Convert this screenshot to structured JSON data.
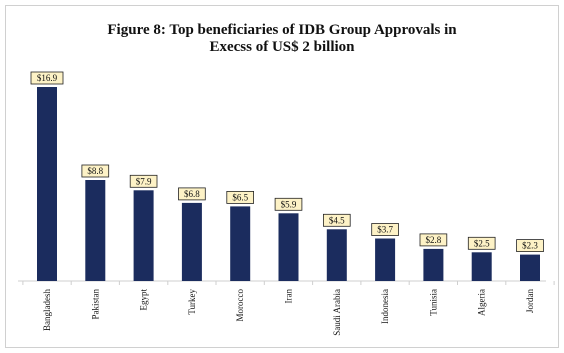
{
  "chart_data": {
    "type": "bar",
    "title_line1": "Figure 8: Top beneficiaries of IDB Group Approvals in",
    "title_line2": "Execss of US$ 2 billion",
    "categories": [
      "Bangladesh",
      "Pakistan",
      "Egypt",
      "Turkey",
      "Morocco",
      "Iran",
      "Saudi Arabia",
      "Indonesia",
      "Tunisia",
      "Algeria",
      "Jordan"
    ],
    "values": [
      16.9,
      8.8,
      7.9,
      6.8,
      6.5,
      5.9,
      4.5,
      3.7,
      2.8,
      2.5,
      2.3
    ],
    "data_labels": [
      "$16.9",
      "$8.8",
      "$7.9",
      "$6.8",
      "$6.5",
      "$5.9",
      "$4.5",
      "$3.7",
      "$2.8",
      "$2.5",
      "$2.3"
    ],
    "ylim": [
      0,
      16.9
    ],
    "grid": false,
    "legend": "none",
    "colors": {
      "bar": "#1b2c5e",
      "label_fill": "#fdf2c6"
    }
  }
}
